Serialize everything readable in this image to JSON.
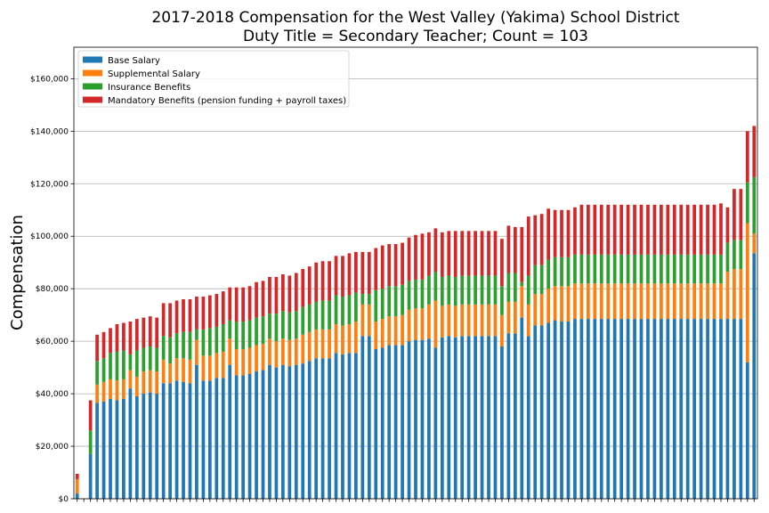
{
  "chart_data": {
    "type": "bar",
    "stacked": true,
    "title_line1": "2017-2018 Compensation for the West Valley (Yakima) School District",
    "title_line2": "Duty Title = Secondary Teacher; Count = 103",
    "xlabel": "",
    "ylabel": "Compensation",
    "ylim": [
      0,
      172000
    ],
    "yticks": [
      0,
      20000,
      40000,
      60000,
      80000,
      100000,
      120000,
      140000,
      160000
    ],
    "ytick_labels": [
      "$0",
      "$20,000",
      "$40,000",
      "$60,000",
      "$80,000",
      "$100,000",
      "$120,000",
      "$140,000",
      "$160,000"
    ],
    "grid": "horizontal",
    "legend_position": "top-left",
    "colors": {
      "base": "#1f77b4",
      "supplemental": "#ff7f0e",
      "insurance": "#2ca02c",
      "mandatory": "#d62728"
    },
    "series": [
      {
        "key": "base",
        "name": "Base Salary",
        "values": [
          2000,
          0,
          17000,
          36500,
          37000,
          38000,
          37500,
          38000,
          42000,
          39000,
          40000,
          40500,
          40000,
          44000,
          44000,
          45000,
          44500,
          44000,
          51000,
          45000,
          45000,
          46000,
          46000,
          51000,
          47000,
          47000,
          47500,
          48500,
          49000,
          51000,
          50000,
          51000,
          50500,
          51000,
          51500,
          52500,
          53500,
          53500,
          53500,
          55500,
          55000,
          55500,
          55500,
          62000,
          62000,
          57000,
          57500,
          58500,
          58500,
          58500,
          60000,
          60500,
          60500,
          61000,
          57500,
          61500,
          62000,
          61500,
          62000,
          62000,
          62000,
          62000,
          62000,
          62000,
          58000,
          63000,
          63000,
          69000,
          62000,
          66000,
          66000,
          67000,
          68000,
          67500,
          67500,
          68500,
          68500,
          68500,
          68500,
          68500,
          68500,
          68500,
          68500,
          68500,
          68500,
          68500,
          68500,
          68500,
          68500,
          68500,
          68500,
          68500,
          68500,
          68500,
          68500,
          68500,
          68500,
          68500,
          68500,
          68500,
          68500,
          52000,
          93500
        ]
      },
      {
        "key": "supplemental",
        "name": "Supplemental Salary",
        "values": [
          5500,
          0,
          0,
          7000,
          7500,
          7500,
          7500,
          7500,
          7000,
          7500,
          8500,
          8500,
          8500,
          9000,
          7500,
          8500,
          9000,
          9000,
          9500,
          9500,
          9500,
          9500,
          10000,
          10000,
          10000,
          10000,
          10000,
          10000,
          10000,
          10000,
          10000,
          10000,
          10000,
          10000,
          11000,
          11000,
          11000,
          11000,
          11000,
          11000,
          11000,
          11000,
          12000,
          12000,
          12000,
          10500,
          11000,
          11000,
          11000,
          11500,
          12000,
          12000,
          12000,
          13000,
          18000,
          12000,
          12000,
          12000,
          12000,
          12000,
          12000,
          12000,
          12000,
          12000,
          12000,
          12000,
          12000,
          12000,
          12000,
          12000,
          12000,
          13000,
          13000,
          13500,
          13500,
          13500,
          13500,
          13500,
          13500,
          13500,
          13500,
          13500,
          13500,
          13500,
          13500,
          13500,
          13500,
          13500,
          13500,
          13500,
          13500,
          13500,
          13500,
          13500,
          13500,
          13500,
          13500,
          13500,
          18000,
          19000,
          19000,
          53000,
          7500
        ]
      },
      {
        "key": "insurance",
        "name": "Insurance Benefits",
        "values": [
          0,
          0,
          9000,
          9000,
          9000,
          10000,
          11000,
          11000,
          6000,
          10000,
          9000,
          9000,
          9000,
          9000,
          10000,
          9500,
          10000,
          10500,
          4000,
          10000,
          10500,
          10000,
          10500,
          7000,
          10500,
          10500,
          10500,
          10500,
          10500,
          9500,
          10500,
          10500,
          10500,
          10500,
          10500,
          10500,
          10500,
          11000,
          11000,
          11000,
          11000,
          11000,
          11000,
          4000,
          4000,
          12000,
          11500,
          11500,
          11500,
          11500,
          11000,
          11000,
          11000,
          11000,
          11000,
          11000,
          11000,
          11000,
          11000,
          11000,
          11000,
          11000,
          11000,
          11000,
          11000,
          11000,
          11000,
          1500,
          11000,
          11000,
          11000,
          11000,
          11000,
          11000,
          11000,
          11000,
          11000,
          11000,
          11000,
          11000,
          11000,
          11000,
          11000,
          11000,
          11000,
          11000,
          11000,
          11000,
          11000,
          11000,
          11000,
          11000,
          11000,
          11000,
          11000,
          11000,
          11000,
          11000,
          11000,
          11000,
          11000,
          15500,
          21500
        ]
      },
      {
        "key": "mandatory",
        "name": "Mandatory Benefits (pension funding + payroll taxes)",
        "values": [
          2000,
          0,
          11500,
          10000,
          10000,
          9500,
          10500,
          10500,
          12500,
          12000,
          11500,
          11500,
          11500,
          12500,
          13000,
          12500,
          12500,
          12500,
          12500,
          12500,
          12500,
          12500,
          12500,
          12500,
          13000,
          13000,
          13000,
          13500,
          13500,
          14000,
          14000,
          14000,
          14000,
          14500,
          14500,
          14500,
          15000,
          15000,
          15000,
          15000,
          15500,
          16000,
          15500,
          16000,
          16000,
          16000,
          16500,
          16000,
          16000,
          16000,
          16500,
          17000,
          17500,
          16500,
          16500,
          17000,
          17000,
          17500,
          17000,
          17000,
          17000,
          17000,
          17000,
          17000,
          18000,
          18000,
          17500,
          21000,
          22500,
          19000,
          19500,
          19500,
          18000,
          18000,
          18000,
          18000,
          19000,
          19000,
          19000,
          19000,
          19000,
          19000,
          19000,
          19000,
          19000,
          19000,
          19000,
          19000,
          19000,
          19000,
          19000,
          19000,
          19000,
          19000,
          19000,
          19000,
          19000,
          19500,
          13500,
          19500,
          19500,
          19500,
          19500
        ]
      }
    ]
  }
}
